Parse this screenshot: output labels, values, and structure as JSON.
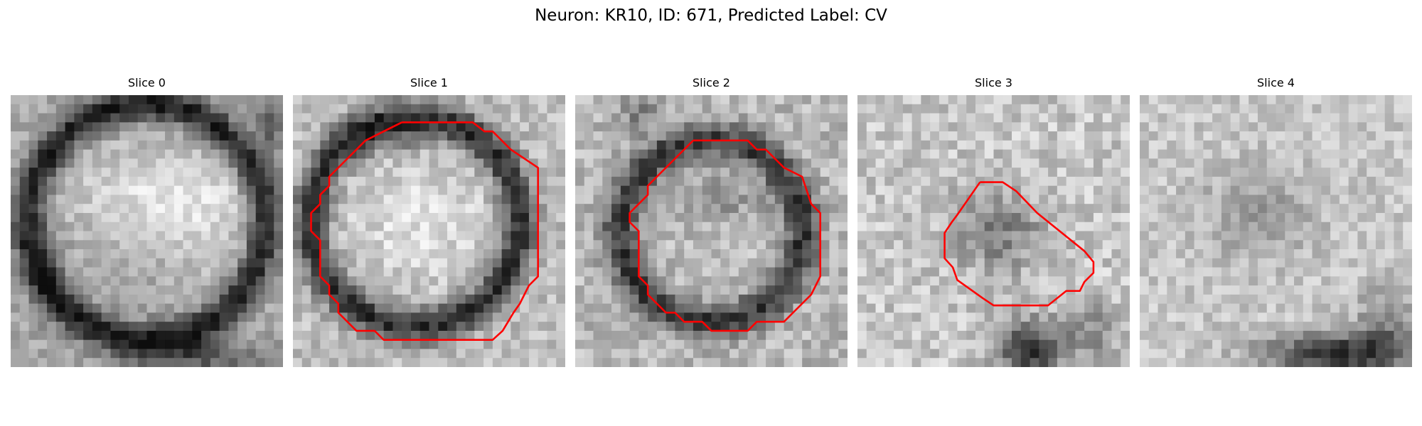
{
  "figure": {
    "title": "Neuron: KR10, ID: 671, Predicted Label: CV",
    "contour_color": "#ff0000"
  },
  "slices": [
    {
      "title": "Slice 0",
      "has_contour": false
    },
    {
      "title": "Slice 1",
      "has_contour": true
    },
    {
      "title": "Slice 2",
      "has_contour": true
    },
    {
      "title": "Slice 3",
      "has_contour": true
    },
    {
      "title": "Slice 4",
      "has_contour": false
    }
  ]
}
